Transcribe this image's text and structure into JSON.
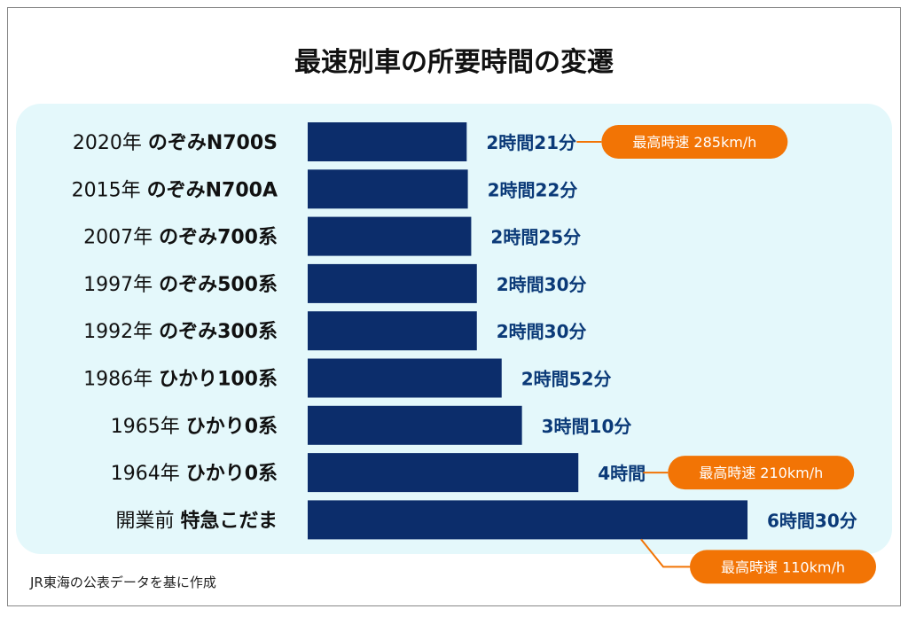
{
  "chart_data": {
    "type": "bar",
    "orientation": "horizontal",
    "title": "最速別車の所要時間の変遷",
    "unit": "minutes",
    "categories": [
      {
        "year": "2020年",
        "name": "のぞみN700S"
      },
      {
        "year": "2015年",
        "name": "のぞみN700A"
      },
      {
        "year": "2007年",
        "name": "のぞみ700系"
      },
      {
        "year": "1997年",
        "name": "のぞみ500系"
      },
      {
        "year": "1992年",
        "name": "のぞみ300系"
      },
      {
        "year": "1986年",
        "name": "ひかり100系"
      },
      {
        "year": "1965年",
        "name": "ひかり0系"
      },
      {
        "year": "1964年",
        "name": "ひかり0系"
      },
      {
        "year": "開業前",
        "name": "特急こだま"
      }
    ],
    "values": [
      141,
      142,
      145,
      150,
      150,
      172,
      190,
      240,
      390
    ],
    "value_labels": [
      "2時間21分",
      "2時間22分",
      "2時間25分",
      "2時間30分",
      "2時間30分",
      "2時間52分",
      "3時間10分",
      "4時間",
      "6時間30分"
    ],
    "annotations": [
      {
        "row": 0,
        "text": "最高時速 285km/h"
      },
      {
        "row": 7,
        "text": "最高時速 210km/h"
      },
      {
        "row": 8,
        "text": "最高時速 110km/h"
      }
    ],
    "xlim": [
      0,
      390
    ],
    "source": "JR東海の公表データを基に作成",
    "colors": {
      "bar": "#0c2d6b",
      "label": "#0b3a78",
      "callout": "#f27405",
      "panel": "#e4f8fb"
    }
  }
}
